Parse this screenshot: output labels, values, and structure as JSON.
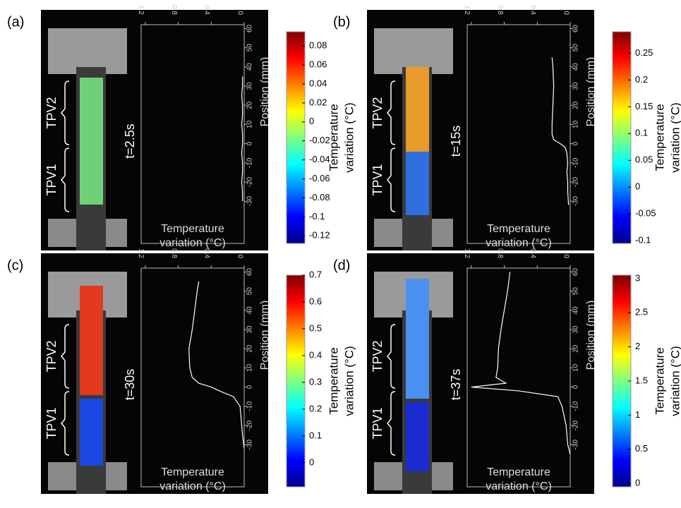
{
  "chart_data": [
    {
      "type": "line",
      "label": "(a)",
      "time": "t=2.5s",
      "tpv_labels": [
        "TPV2",
        "TPV1"
      ],
      "xlabel": [
        "Temperature",
        "variation (°C)"
      ],
      "ylabel": "Position (mm)",
      "clabel": [
        "Temperature",
        "variation (°C)"
      ],
      "xlim": [
        1.25,
        0
      ],
      "xticks": [
        1.2,
        0.8,
        0.4,
        0
      ],
      "ylim": [
        -52,
        62
      ],
      "yticks": [
        60,
        50,
        40,
        30,
        20,
        10,
        0,
        -10,
        -20,
        -30
      ],
      "clim": [
        -0.128,
        0.095
      ],
      "cticks": [
        0.08,
        0.06,
        0.04,
        0.02,
        0,
        -0.02,
        -0.04,
        -0.06,
        -0.08,
        -0.1,
        -0.12
      ],
      "series": [
        {
          "color": "#ffffff",
          "x": [
            -30,
            -25,
            -20,
            -15,
            -10,
            -5,
            0,
            5,
            10,
            15,
            20,
            25,
            30,
            35
          ],
          "values": [
            0.02,
            0.02,
            0.03,
            0.02,
            0.02,
            0.03,
            0.02,
            0.02,
            0.03,
            0.02,
            0.02,
            0.03,
            0.02,
            0.02
          ]
        }
      ]
    },
    {
      "type": "line",
      "label": "(b)",
      "time": "t=15s",
      "tpv_labels": [
        "TPV2",
        "TPV1"
      ],
      "xlabel": [
        "Temperature",
        "variation (°C)"
      ],
      "ylabel": "Position (mm)",
      "clabel": [
        "Temperature",
        "variation (°C)"
      ],
      "xlim": [
        1.25,
        0
      ],
      "xticks": [
        1.2,
        0.8,
        0.4,
        0
      ],
      "ylim": [
        -52,
        62
      ],
      "yticks": [
        60,
        50,
        40,
        30,
        20,
        10,
        0,
        -10,
        -20,
        -30
      ],
      "clim": [
        -0.105,
        0.29
      ],
      "cticks": [
        0.25,
        0.2,
        0.15,
        0.1,
        0.05,
        0,
        -0.05,
        -0.1
      ],
      "series": [
        {
          "color": "#ffffff",
          "x": [
            -32,
            -25,
            -20,
            -15,
            -10,
            -5,
            -2,
            0,
            2,
            5,
            10,
            20,
            30,
            40,
            45
          ],
          "values": [
            0.02,
            0.03,
            0.03,
            0.04,
            0.03,
            0.04,
            0.06,
            0.12,
            0.2,
            0.22,
            0.22,
            0.21,
            0.2,
            0.21,
            0.22
          ]
        }
      ]
    },
    {
      "type": "line",
      "label": "(c)",
      "time": "t=30s",
      "tpv_labels": [
        "TPV2",
        "TPV1"
      ],
      "xlabel": [
        "Temperature",
        "variation (°C)"
      ],
      "ylabel": "Position (mm)",
      "clabel": [
        "Temperature",
        "variation (°C)"
      ],
      "xlim": [
        1.25,
        0
      ],
      "xticks": [
        1.2,
        0.8,
        0.4,
        0
      ],
      "ylim": [
        -52,
        62
      ],
      "yticks": [
        60,
        50,
        40,
        30,
        20,
        10,
        0,
        -10,
        -20,
        -30
      ],
      "clim": [
        -0.09,
        0.7
      ],
      "cticks": [
        0.7,
        0.6,
        0.5,
        0.4,
        0.3,
        0.2,
        0.1,
        0
      ],
      "series": [
        {
          "color": "#ffffff",
          "x": [
            -32,
            -25,
            -20,
            -15,
            -10,
            -5,
            -2,
            0,
            2,
            5,
            10,
            20,
            30,
            40,
            50,
            55
          ],
          "values": [
            0,
            0.02,
            0.03,
            0.04,
            0.05,
            0.13,
            0.3,
            0.4,
            0.55,
            0.63,
            0.66,
            0.67,
            0.63,
            0.6,
            0.57,
            0.55
          ]
        }
      ]
    },
    {
      "type": "line",
      "label": "(d)",
      "time": "t=37s",
      "tpv_labels": [
        "TPV2",
        "TPV1"
      ],
      "xlabel": [
        "Temperature",
        "variation (°C)"
      ],
      "ylabel": "Position (mm)",
      "clabel": [
        "Temperature",
        "variation (°C)"
      ],
      "xlim": [
        1.25,
        0
      ],
      "xticks": [
        1.2,
        0.8,
        0.4,
        0
      ],
      "ylim": [
        -52,
        62
      ],
      "yticks": [
        60,
        50,
        40,
        30,
        20,
        10,
        0,
        -10,
        -20,
        -30
      ],
      "clim": [
        -0.05,
        3.05
      ],
      "cticks": [
        3,
        2.5,
        2,
        1.5,
        1,
        0.5,
        0
      ],
      "series": [
        {
          "color": "#ffffff",
          "x": [
            -35,
            -30,
            -20,
            -10,
            -5,
            -2,
            0,
            2,
            5,
            10,
            20,
            30,
            40,
            50,
            60
          ],
          "values": [
            0,
            0.03,
            0.05,
            0.1,
            0.15,
            0.62,
            1.2,
            0.78,
            0.9,
            0.88,
            0.87,
            0.84,
            0.8,
            0.76,
            0.73
          ]
        }
      ]
    }
  ]
}
